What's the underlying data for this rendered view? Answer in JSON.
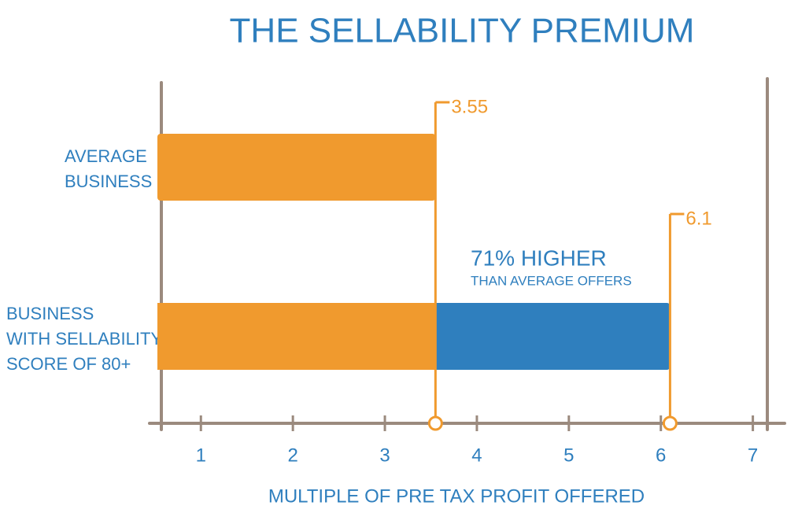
{
  "chart_data": {
    "type": "bar",
    "orientation": "horizontal",
    "title": "THE SELLABILITY PREMIUM",
    "categories": [
      [
        "AVERAGE",
        "BUSINESS"
      ],
      [
        "BUSINESS",
        "WITH SELLABILITY",
        "SCORE OF 80+"
      ]
    ],
    "values": [
      3.55,
      6.1
    ],
    "colors": [
      "#f09a2e",
      "#2f7fbe"
    ],
    "xlabel": "MULTIPLE OF PRE TAX PROFIT OFFERED",
    "xlim": [
      0.57,
      7.26
    ],
    "xticks": [
      1,
      2,
      3,
      4,
      5,
      6,
      7
    ],
    "annotation": {
      "text": "71% HIGHER",
      "subtext": "THAN AVERAGE OFFERS"
    }
  }
}
